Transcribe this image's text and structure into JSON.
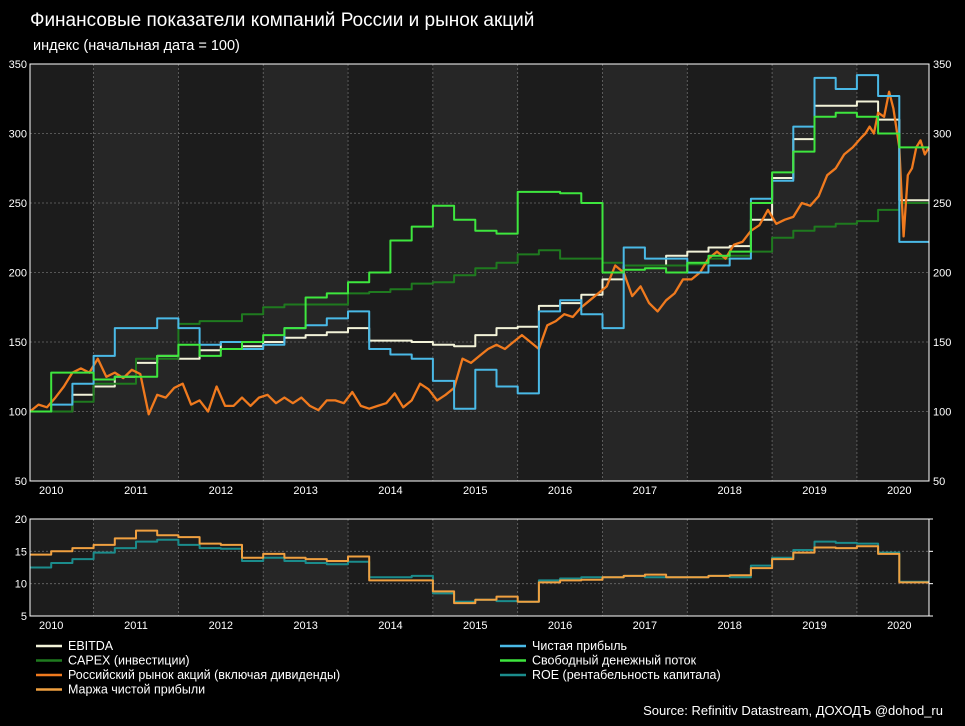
{
  "title": "Финансовые показатели компаний России и рынок акций",
  "subtitle": "индекс (начальная дата = 100)",
  "source": "Source: Refinitiv Datastream, ДОХОДЪ @dohod_ru",
  "chart_data": [
    {
      "type": "line",
      "title": "Финансовые показатели компаний России и рынок акций",
      "ylabel": "индекс (начальная дата = 100)",
      "xlim": [
        2009.75,
        2020.35
      ],
      "ylim": [
        50,
        350
      ],
      "yticks": [
        50,
        100,
        150,
        200,
        250,
        300,
        350
      ],
      "xticks": [
        2010,
        2011,
        2012,
        2013,
        2014,
        2015,
        2016,
        2017,
        2018,
        2019,
        2020
      ],
      "grid": true,
      "series": [
        {
          "name": "EBITDA",
          "color": "#f2f2d8",
          "step": true,
          "x": [
            2009.75,
            2010.25,
            2010.5,
            2010.75,
            2011.0,
            2011.25,
            2011.5,
            2011.75,
            2012.0,
            2012.25,
            2012.5,
            2012.75,
            2013.0,
            2013.25,
            2013.5,
            2013.75,
            2014.0,
            2014.25,
            2014.5,
            2014.75,
            2015.0,
            2015.25,
            2015.5,
            2015.75,
            2016.0,
            2016.25,
            2016.5,
            2016.75,
            2017.0,
            2017.25,
            2017.5,
            2017.75,
            2018.0,
            2018.25,
            2018.5,
            2018.75,
            2019.0,
            2019.25,
            2019.5,
            2019.75,
            2020.0,
            2020.35
          ],
          "y": [
            100,
            112,
            118,
            125,
            135,
            140,
            138,
            144,
            150,
            147,
            150,
            153,
            155,
            157,
            160,
            151,
            151,
            150,
            148,
            147,
            155,
            160,
            161,
            176,
            178,
            184,
            195,
            205,
            205,
            212,
            215,
            218,
            219,
            238,
            268,
            296,
            320,
            320,
            323,
            310,
            252,
            252
          ]
        },
        {
          "name": "CAPEX (инвестиции)",
          "color": "#1f7a1f",
          "step": true,
          "x": [
            2009.75,
            2010.25,
            2010.5,
            2011.0,
            2011.5,
            2011.75,
            2012.0,
            2012.25,
            2012.5,
            2012.75,
            2013.0,
            2013.25,
            2013.5,
            2013.75,
            2014.0,
            2014.25,
            2014.5,
            2014.75,
            2015.0,
            2015.25,
            2015.5,
            2015.75,
            2016.0,
            2016.25,
            2016.5,
            2016.75,
            2017.0,
            2017.25,
            2017.5,
            2017.75,
            2018.0,
            2018.25,
            2018.5,
            2018.75,
            2019.0,
            2019.25,
            2019.5,
            2019.75,
            2020.0,
            2020.35
          ],
          "y": [
            100,
            107,
            120,
            138,
            163,
            165,
            165,
            170,
            175,
            177,
            177,
            177,
            185,
            186,
            188,
            192,
            193,
            198,
            203,
            207,
            213,
            216,
            210,
            210,
            207,
            205,
            205,
            205,
            206,
            210,
            212,
            215,
            225,
            230,
            233,
            235,
            237,
            245,
            250,
            250
          ]
        },
        {
          "name": "Российский рынок акций (включая дивиденды)",
          "color": "#f07a1e",
          "step": false,
          "x": [
            2009.75,
            2009.85,
            2009.95,
            2010.05,
            2010.15,
            2010.25,
            2010.35,
            2010.45,
            2010.55,
            2010.65,
            2010.75,
            2010.85,
            2010.95,
            2011.05,
            2011.15,
            2011.25,
            2011.35,
            2011.45,
            2011.55,
            2011.65,
            2011.75,
            2011.85,
            2011.95,
            2012.05,
            2012.15,
            2012.25,
            2012.35,
            2012.45,
            2012.55,
            2012.65,
            2012.75,
            2012.85,
            2012.95,
            2013.05,
            2013.15,
            2013.25,
            2013.35,
            2013.45,
            2013.55,
            2013.65,
            2013.75,
            2013.85,
            2013.95,
            2014.05,
            2014.15,
            2014.25,
            2014.35,
            2014.45,
            2014.55,
            2014.65,
            2014.75,
            2014.85,
            2014.95,
            2015.05,
            2015.15,
            2015.25,
            2015.35,
            2015.45,
            2015.55,
            2015.65,
            2015.75,
            2015.85,
            2015.95,
            2016.05,
            2016.15,
            2016.25,
            2016.35,
            2016.45,
            2016.55,
            2016.65,
            2016.75,
            2016.85,
            2016.95,
            2017.05,
            2017.15,
            2017.25,
            2017.35,
            2017.45,
            2017.55,
            2017.65,
            2017.75,
            2017.85,
            2017.95,
            2018.05,
            2018.15,
            2018.25,
            2018.35,
            2018.45,
            2018.55,
            2018.65,
            2018.75,
            2018.85,
            2018.95,
            2019.05,
            2019.15,
            2019.25,
            2019.35,
            2019.45,
            2019.55,
            2019.6,
            2019.65,
            2019.7,
            2019.75,
            2019.82,
            2019.88,
            2019.93,
            2020.0,
            2020.05,
            2020.1,
            2020.15,
            2020.2,
            2020.25,
            2020.3,
            2020.35
          ],
          "y": [
            100,
            105,
            103,
            110,
            118,
            128,
            131,
            128,
            138,
            125,
            128,
            124,
            130,
            127,
            98,
            112,
            110,
            117,
            120,
            105,
            108,
            100,
            118,
            104,
            104,
            110,
            104,
            110,
            112,
            106,
            110,
            106,
            110,
            104,
            101,
            108,
            108,
            106,
            114,
            104,
            102,
            104,
            106,
            113,
            103,
            108,
            120,
            116,
            108,
            112,
            117,
            138,
            135,
            140,
            145,
            148,
            145,
            150,
            155,
            150,
            145,
            162,
            165,
            170,
            168,
            175,
            180,
            185,
            190,
            205,
            200,
            183,
            190,
            178,
            172,
            180,
            185,
            195,
            195,
            200,
            210,
            215,
            210,
            220,
            222,
            230,
            234,
            245,
            235,
            238,
            240,
            250,
            248,
            255,
            270,
            275,
            285,
            290,
            297,
            300,
            305,
            300,
            315,
            312,
            330,
            318,
            290,
            226,
            270,
            275,
            290,
            295,
            285,
            290
          ]
        },
        {
          "name": "Маржа чистой прибыли",
          "color": "#f0a040",
          "step": true,
          "hidden": true,
          "x": [],
          "y": []
        },
        {
          "name": "Чистая прибыль",
          "color": "#4ab9e6",
          "step": true,
          "x": [
            2009.75,
            2010.0,
            2010.25,
            2010.5,
            2010.75,
            2011.0,
            2011.25,
            2011.5,
            2011.75,
            2012.0,
            2012.25,
            2012.5,
            2012.75,
            2013.0,
            2013.25,
            2013.5,
            2013.75,
            2014.0,
            2014.25,
            2014.5,
            2014.75,
            2015.0,
            2015.25,
            2015.5,
            2015.75,
            2016.0,
            2016.25,
            2016.5,
            2016.75,
            2017.0,
            2017.25,
            2017.5,
            2017.75,
            2018.0,
            2018.25,
            2018.5,
            2018.75,
            2019.0,
            2019.25,
            2019.5,
            2019.75,
            2020.0,
            2020.35
          ],
          "y": [
            100,
            105,
            120,
            140,
            160,
            160,
            167,
            160,
            148,
            150,
            145,
            148,
            160,
            162,
            167,
            172,
            145,
            141,
            138,
            122,
            102,
            130,
            118,
            113,
            172,
            180,
            170,
            160,
            218,
            210,
            210,
            200,
            205,
            210,
            253,
            266,
            305,
            340,
            332,
            342,
            327,
            222,
            222
          ]
        },
        {
          "name": "Свободный денежный поток",
          "color": "#3ee63e",
          "step": true,
          "x": [
            2009.75,
            2010.0,
            2010.25,
            2010.5,
            2010.75,
            2011.0,
            2011.25,
            2011.5,
            2011.75,
            2012.0,
            2012.25,
            2012.5,
            2012.75,
            2013.0,
            2013.25,
            2013.5,
            2013.75,
            2014.0,
            2014.25,
            2014.5,
            2014.75,
            2015.0,
            2015.25,
            2015.5,
            2015.75,
            2016.0,
            2016.25,
            2016.5,
            2016.75,
            2017.0,
            2017.25,
            2017.5,
            2017.75,
            2018.0,
            2018.25,
            2018.5,
            2018.75,
            2019.0,
            2019.25,
            2019.5,
            2019.75,
            2020.0,
            2020.35
          ],
          "y": [
            100,
            128,
            128,
            123,
            125,
            125,
            140,
            148,
            140,
            145,
            150,
            155,
            160,
            182,
            185,
            193,
            200,
            223,
            233,
            248,
            238,
            230,
            228,
            258,
            258,
            257,
            250,
            200,
            202,
            203,
            200,
            207,
            212,
            215,
            250,
            272,
            287,
            312,
            315,
            312,
            300,
            290,
            290
          ]
        },
        {
          "name": "ROE (рентабельность капитала)",
          "color": "#2aa5a5",
          "step": true,
          "hidden": true,
          "x": [],
          "y": []
        }
      ]
    },
    {
      "type": "line",
      "xlim": [
        2009.75,
        2020.35
      ],
      "ylim": [
        5,
        20
      ],
      "yticks": [
        5,
        10,
        15,
        20
      ],
      "xticks": [
        2010,
        2011,
        2012,
        2013,
        2014,
        2015,
        2016,
        2017,
        2018,
        2019,
        2020
      ],
      "grid": true,
      "series": [
        {
          "name": "ROE (рентабельность капитала)",
          "color": "#1b8c8c",
          "step": true,
          "x": [
            2009.75,
            2010.0,
            2010.25,
            2010.5,
            2010.75,
            2011.0,
            2011.25,
            2011.5,
            2011.75,
            2012.0,
            2012.25,
            2012.5,
            2012.75,
            2013.0,
            2013.25,
            2013.5,
            2013.75,
            2014.0,
            2014.25,
            2014.5,
            2014.75,
            2015.0,
            2015.25,
            2015.5,
            2015.75,
            2016.0,
            2016.25,
            2016.5,
            2016.75,
            2017.0,
            2017.25,
            2017.5,
            2017.75,
            2018.0,
            2018.25,
            2018.5,
            2018.75,
            2019.0,
            2019.25,
            2019.5,
            2019.75,
            2020.0,
            2020.35
          ],
          "y": [
            12.5,
            13.2,
            13.8,
            14.8,
            15.5,
            16.5,
            16.8,
            16.0,
            15.5,
            15.4,
            13.5,
            14.0,
            13.5,
            13.2,
            13.0,
            13.4,
            11.0,
            11.0,
            11.2,
            8.5,
            7.2,
            7.5,
            7.3,
            7.2,
            10.5,
            10.8,
            11.0,
            11.0,
            11.2,
            11.0,
            11.0,
            11.0,
            11.2,
            11.0,
            12.8,
            14.0,
            15.2,
            16.5,
            16.3,
            16.2,
            14.8,
            10.3,
            10.3
          ]
        },
        {
          "name": "Маржа чистой прибыли",
          "color": "#f0a040",
          "step": true,
          "x": [
            2009.75,
            2010.0,
            2010.25,
            2010.5,
            2010.75,
            2011.0,
            2011.25,
            2011.5,
            2011.75,
            2012.0,
            2012.25,
            2012.5,
            2012.75,
            2013.0,
            2013.25,
            2013.5,
            2013.75,
            2014.0,
            2014.25,
            2014.5,
            2014.75,
            2015.0,
            2015.25,
            2015.5,
            2015.75,
            2016.0,
            2016.25,
            2016.5,
            2016.75,
            2017.0,
            2017.25,
            2017.5,
            2017.75,
            2018.0,
            2018.25,
            2018.5,
            2018.75,
            2019.0,
            2019.25,
            2019.5,
            2019.75,
            2020.0,
            2020.35
          ],
          "y": [
            14.5,
            15.0,
            15.5,
            16.0,
            17.0,
            18.2,
            17.5,
            17.2,
            16.2,
            16.0,
            14.0,
            14.6,
            14.0,
            13.8,
            13.5,
            14.2,
            10.5,
            10.5,
            10.5,
            8.8,
            7.0,
            7.5,
            8.0,
            7.2,
            10.2,
            10.5,
            10.6,
            11.0,
            11.2,
            11.4,
            11.0,
            11.0,
            11.2,
            11.3,
            12.4,
            13.8,
            14.8,
            15.6,
            15.5,
            15.8,
            14.6,
            10.2,
            10.2
          ]
        }
      ]
    }
  ],
  "legend": [
    {
      "label": "EBITDA",
      "color": "#f2f2d8"
    },
    {
      "label": "Чистая прибыль",
      "color": "#4ab9e6"
    },
    {
      "label": "CAPEX (инвестиции)",
      "color": "#1f7a1f"
    },
    {
      "label": "Свободный денежный поток",
      "color": "#3ee63e"
    },
    {
      "label": "Российский рынок акций (включая дивиденды)",
      "color": "#f07a1e"
    },
    {
      "label": "ROE (рентабельность капитала)",
      "color": "#1b8c8c"
    },
    {
      "label": "Маржа чистой прибыли",
      "color": "#f0a040"
    }
  ]
}
